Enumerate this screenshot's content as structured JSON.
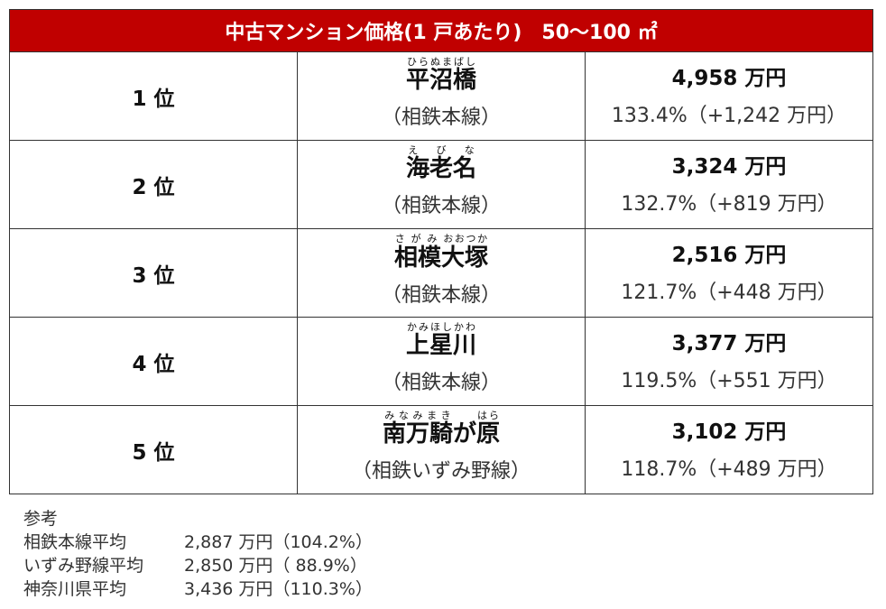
{
  "table": {
    "title": "中古マンション価格(1 戸あたり)　50～100 ㎡",
    "rows": [
      {
        "rank": "1 位",
        "name": [
          {
            "text": "平沼橋",
            "ruby": "ひらぬまばし"
          }
        ],
        "line": "（相鉄本線）",
        "price": "4,958 万円",
        "change": "133.4%（+1,242 万円）"
      },
      {
        "rank": "2 位",
        "name": [
          {
            "text": "海老名",
            "ruby": "え　び　な"
          }
        ],
        "line": "（相鉄本線）",
        "price": "3,324 万円",
        "change": "132.7%（+819 万円）"
      },
      {
        "rank": "3 位",
        "name": [
          {
            "text": "相模大塚",
            "ruby": "さ が み おおつか"
          }
        ],
        "line": "（相鉄本線）",
        "price": "2,516 万円",
        "change": "121.7%（+448 万円）"
      },
      {
        "rank": "4 位",
        "name": [
          {
            "text": "上星川",
            "ruby": "かみほしかわ"
          }
        ],
        "line": "（相鉄本線）",
        "price": "3,377 万円",
        "change": "119.5%（+551 万円）"
      },
      {
        "rank": "5 位",
        "name": [
          {
            "text": "南万騎",
            "ruby": "みなみまき"
          },
          {
            "text": "が"
          },
          {
            "text": "原",
            "ruby": "はら"
          }
        ],
        "line": "（相鉄いずみ野線）",
        "price": "3,102 万円",
        "change": "118.7%（+489 万円）"
      }
    ]
  },
  "notes": {
    "heading": "参考",
    "rows": [
      {
        "label": "相鉄本線平均",
        "price": "2,887 万円",
        "pct": "（104.2%）"
      },
      {
        "label": "いずみ野線平均",
        "price": "2,850 万円",
        "pct": "（ 88.9%）"
      },
      {
        "label": "神奈川県平均",
        "price": "3,436 万円",
        "pct": "（110.3%）"
      }
    ]
  }
}
